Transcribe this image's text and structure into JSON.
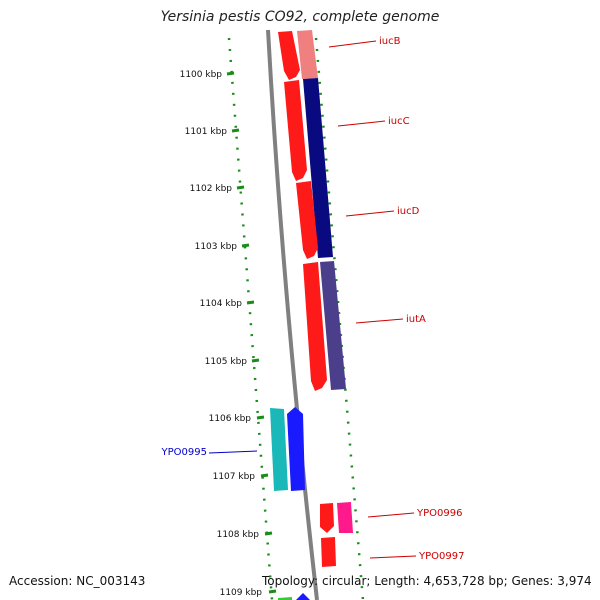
{
  "title": "Yersinia pestis CO92, complete genome",
  "accession_text": "Accession: NC_003143",
  "summary_text": "Topology: circular; Length: 4,653,728 bp; Genes: 3,974",
  "colors": {
    "red": "#ff1a1a",
    "salmon": "#f08080",
    "navy": "#0a0a80",
    "slate": "#4b3f8c",
    "cyan": "#1ab8b8",
    "blue": "#1a1aff",
    "pink": "#ff1a8c",
    "green": "#33cc33",
    "tick_green": "#1a8c1a",
    "label_red": "#cc0000",
    "label_blue": "#0000cc"
  },
  "ruler_labels": [
    {
      "kbp": 1100,
      "text": "1100 kbp"
    },
    {
      "kbp": 1101,
      "text": "1101 kbp"
    },
    {
      "kbp": 1102,
      "text": "1102 kbp"
    },
    {
      "kbp": 1103,
      "text": "1103 kbp"
    },
    {
      "kbp": 1104,
      "text": "1104 kbp"
    },
    {
      "kbp": 1105,
      "text": "1105 kbp"
    },
    {
      "kbp": 1106,
      "text": "1106 kbp"
    },
    {
      "kbp": 1107,
      "text": "1107 kbp"
    },
    {
      "kbp": 1108,
      "text": "1108 kbp"
    },
    {
      "kbp": 1109,
      "text": "1109 kbp"
    }
  ],
  "gene_labels": [
    {
      "text": "iucB",
      "color": "#cc0000"
    },
    {
      "text": "iucC",
      "color": "#cc0000"
    },
    {
      "text": "iucD",
      "color": "#cc0000"
    },
    {
      "text": "iutA",
      "color": "#cc0000"
    },
    {
      "text": "YPO0995",
      "color": "#0000cc"
    },
    {
      "text": "YPO0996",
      "color": "#cc0000"
    },
    {
      "text": "YPO0997",
      "color": "#cc0000"
    }
  ]
}
